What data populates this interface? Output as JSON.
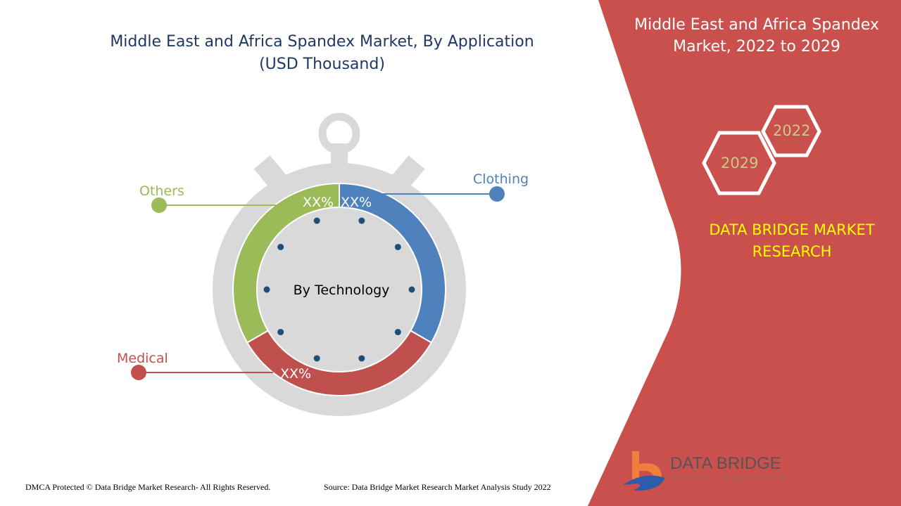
{
  "header": {
    "title_line1": "Middle East and Africa Spandex Market, By Application",
    "title_line2": "(USD Thousand)"
  },
  "side_panel": {
    "title_line1": "Middle East and Africa Spandex",
    "title_line2": "Market, 2022 to 2029",
    "year_start": "2022",
    "year_end": "2029",
    "brand_line1": "DATA BRIDGE MARKET",
    "brand_line2": "RESEARCH"
  },
  "logo": {
    "name": "DATA BRIDGE",
    "subtitle": "MARKET RESEARCH"
  },
  "footer": {
    "copyright": "DMCA Protected © Data Bridge Market Research- All Rights Reserved.",
    "source": "Source: Data Bridge Market Research Market Analysis Study 2022"
  },
  "colors": {
    "panel": "#C9504C",
    "clothing": "#4F81BD",
    "medical": "#C0504D",
    "others": "#9BBB59",
    "gray": "#D9D9D9",
    "dots": "#1F4E79"
  },
  "chart_data": {
    "type": "pie",
    "title": "Middle East and Africa Spandex Market, By Application (USD Thousand)",
    "center_label": "By Technology",
    "segments": [
      {
        "name": "Clothing",
        "label": "XX%",
        "share_deg": 120,
        "color": "#4F81BD"
      },
      {
        "name": "Medical",
        "label": "XX%",
        "share_deg": 120,
        "color": "#C0504D"
      },
      {
        "name": "Others",
        "label": "XX%",
        "share_deg": 120,
        "color": "#9BBB59"
      }
    ]
  }
}
